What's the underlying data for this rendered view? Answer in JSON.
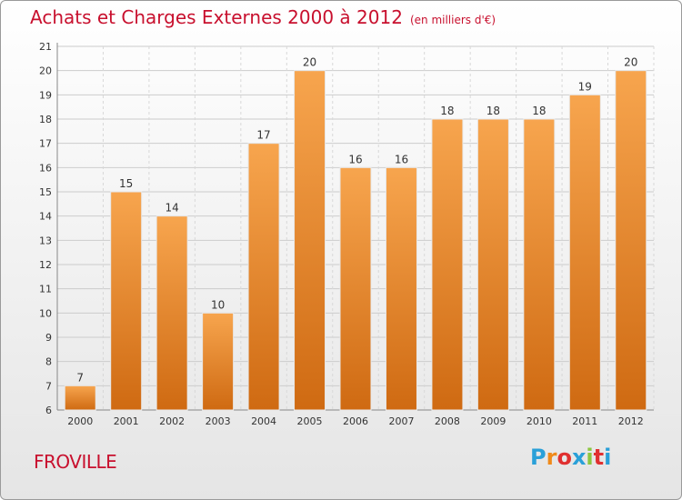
{
  "header": {
    "title": "Achats et Charges Externes 2000 à 2012",
    "subtitle": "(en milliers d'€)"
  },
  "footer": {
    "commune": "FROVILLE",
    "brand_letters": [
      "P",
      "r",
      "o",
      "x",
      "i",
      "t",
      "i"
    ]
  },
  "colors": {
    "title": "#c8102e",
    "bar_top": "#f7a54e",
    "bar_bottom": "#cf6a12",
    "brand": [
      "#2aa0d8",
      "#f08a1a",
      "#e03030",
      "#2aa0d8",
      "#8cc63f",
      "#e03030",
      "#2aa0d8"
    ]
  },
  "chart_data": {
    "type": "bar",
    "categories": [
      "2000",
      "2001",
      "2002",
      "2003",
      "2004",
      "2005",
      "2006",
      "2007",
      "2008",
      "2009",
      "2010",
      "2011",
      "2012"
    ],
    "values": [
      7,
      15,
      14,
      10,
      17,
      20,
      16,
      16,
      18,
      18,
      18,
      19,
      20
    ],
    "ylim": [
      6,
      21
    ],
    "yticks": [
      6,
      7,
      8,
      9,
      10,
      11,
      12,
      13,
      14,
      15,
      16,
      17,
      18,
      19,
      20,
      21
    ],
    "grid": true,
    "data_labels": true
  }
}
